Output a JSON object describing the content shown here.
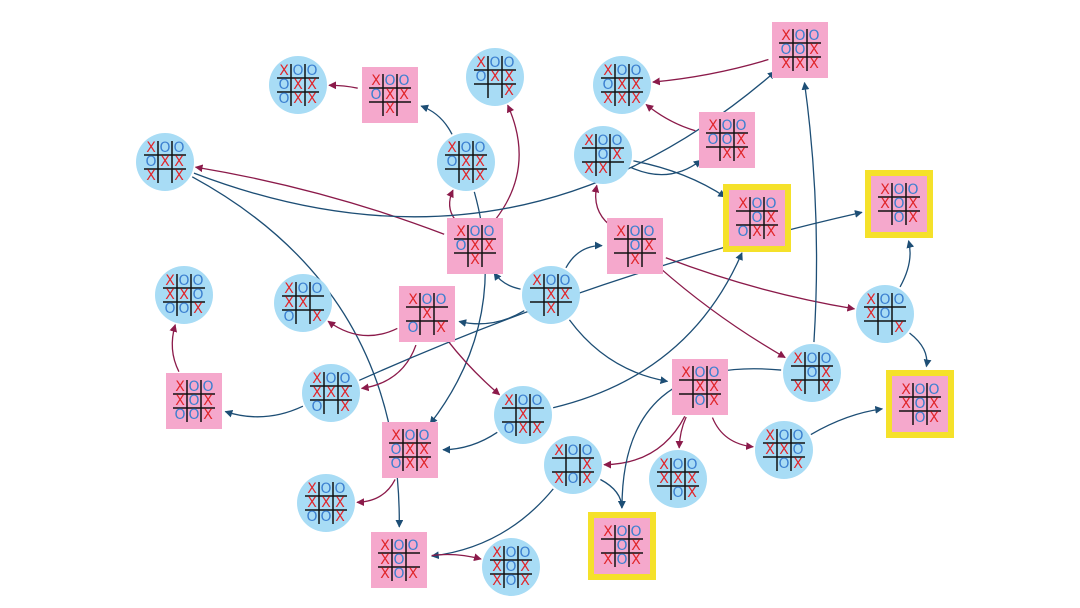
{
  "nodes": [
    {
      "cells": [
        "X",
        "O",
        "O",
        "O",
        "X",
        "X",
        "O",
        "X",
        "X"
      ]
    },
    {
      "cells": [
        "X",
        "O",
        "O",
        "O",
        "X",
        "X",
        null,
        "X",
        null
      ]
    },
    {
      "cells": [
        "X",
        "O",
        "O",
        "O",
        "X",
        "X",
        null,
        null,
        "X"
      ]
    },
    {
      "cells": [
        "X",
        "O",
        "O",
        "O",
        "X",
        "X",
        "X",
        "X",
        "X"
      ]
    },
    {
      "cells": [
        "X",
        "O",
        "O",
        "O",
        "O",
        "X",
        "X",
        "X",
        "X"
      ]
    },
    {
      "cells": [
        "X",
        "O",
        "O",
        "O",
        "O",
        "X",
        null,
        "X",
        "X"
      ]
    },
    {
      "cells": [
        "X",
        "O",
        "O",
        "O",
        "X",
        "X",
        "X",
        null,
        "X"
      ]
    },
    {
      "cells": [
        "X",
        "O",
        "O",
        "O",
        "X",
        "X",
        null,
        "X",
        "X"
      ]
    },
    {
      "cells": [
        "X",
        "O",
        "O",
        null,
        "O",
        "X",
        "X",
        "X",
        null
      ]
    },
    {
      "cells": [
        "X",
        "O",
        "O",
        null,
        "O",
        "X",
        "O",
        "X",
        "X"
      ]
    },
    {
      "cells": [
        "X",
        "O",
        "O",
        "X",
        "O",
        "X",
        null,
        "O",
        "X"
      ]
    },
    {
      "cells": [
        "X",
        "O",
        "O",
        "O",
        "X",
        "X",
        null,
        "X",
        null
      ]
    },
    {
      "cells": [
        "X",
        "O",
        "O",
        null,
        "O",
        "X",
        null,
        "X",
        null
      ]
    },
    {
      "cells": [
        "X",
        "O",
        "O",
        null,
        "X",
        "X",
        null,
        "X",
        null
      ]
    },
    {
      "cells": [
        "X",
        "O",
        "O",
        "X",
        "X",
        "O",
        "O",
        "O",
        "X"
      ]
    },
    {
      "cells": [
        "X",
        "O",
        "O",
        "X",
        "X",
        null,
        "O",
        null,
        "X"
      ]
    },
    {
      "cells": [
        "X",
        "O",
        "O",
        null,
        "X",
        null,
        "O",
        null,
        "X"
      ]
    },
    {
      "cells": [
        "X",
        "O",
        "O",
        "X",
        "O",
        null,
        null,
        null,
        "X"
      ]
    },
    {
      "cells": [
        "X",
        "O",
        "O",
        "X",
        "O",
        "X",
        "O",
        "O",
        "X"
      ]
    },
    {
      "cells": [
        "X",
        "O",
        "O",
        "X",
        "X",
        "X",
        "O",
        null,
        "X"
      ]
    },
    {
      "cells": [
        "X",
        "O",
        "O",
        null,
        "X",
        "X",
        null,
        "O",
        "X"
      ]
    },
    {
      "cells": [
        "X",
        "O",
        "O",
        null,
        "O",
        "X",
        "X",
        null,
        "X"
      ]
    },
    {
      "cells": [
        "X",
        "O",
        "O",
        "X",
        "O",
        "X",
        null,
        "O",
        "X"
      ]
    },
    {
      "cells": [
        "X",
        "O",
        "O",
        null,
        "X",
        null,
        "O",
        "X",
        "X"
      ]
    },
    {
      "cells": [
        "X",
        "O",
        "O",
        "O",
        "X",
        "X",
        "O",
        "X",
        "X"
      ]
    },
    {
      "cells": [
        "X",
        "O",
        "O",
        "X",
        "X",
        "O",
        null,
        "O",
        "X"
      ]
    },
    {
      "cells": [
        "X",
        "O",
        "O",
        null,
        null,
        "X",
        "X",
        "O",
        "X"
      ]
    },
    {
      "cells": [
        "X",
        "O",
        "O",
        "X",
        "X",
        "X",
        null,
        "O",
        "X"
      ]
    },
    {
      "cells": [
        "X",
        "O",
        "O",
        "X",
        "X",
        "X",
        "O",
        "O",
        "X"
      ]
    },
    {
      "cells": [
        "X",
        "O",
        "O",
        null,
        "O",
        "X",
        "X",
        "O",
        "X"
      ]
    },
    {
      "cells": [
        "X",
        "O",
        "O",
        "X",
        "O",
        null,
        "X",
        "O",
        "X"
      ]
    },
    {
      "cells": [
        "X",
        "O",
        "O",
        "X",
        "O",
        "X",
        "X",
        "O",
        "X"
      ]
    }
  ]
}
